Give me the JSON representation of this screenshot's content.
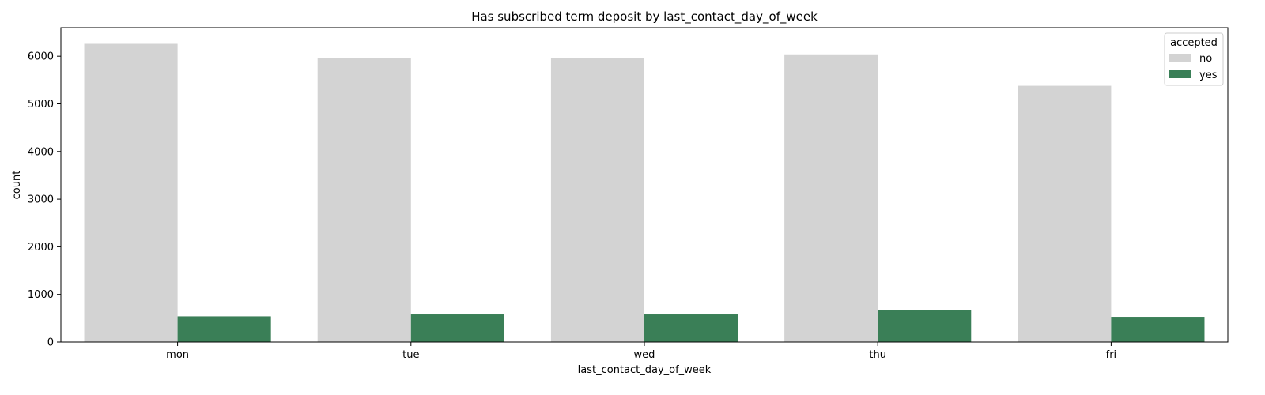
{
  "chart_data": {
    "type": "bar",
    "title": "Has subscribed term deposit by last_contact_day_of_week",
    "xlabel": "last_contact_day_of_week",
    "ylabel": "count",
    "categories": [
      "mon",
      "tue",
      "wed",
      "thu",
      "fri"
    ],
    "series": [
      {
        "name": "no",
        "color": "#d3d3d3",
        "values": [
          6260,
          5960,
          5960,
          6040,
          5380
        ]
      },
      {
        "name": "yes",
        "color": "#3a7f57",
        "values": [
          540,
          580,
          580,
          670,
          530
        ]
      }
    ],
    "ylim": [
      0,
      6600
    ],
    "yticks": [
      0,
      1000,
      2000,
      3000,
      4000,
      5000,
      6000
    ],
    "grid": false,
    "legend": {
      "title": "accepted",
      "placement": "top-right"
    }
  }
}
